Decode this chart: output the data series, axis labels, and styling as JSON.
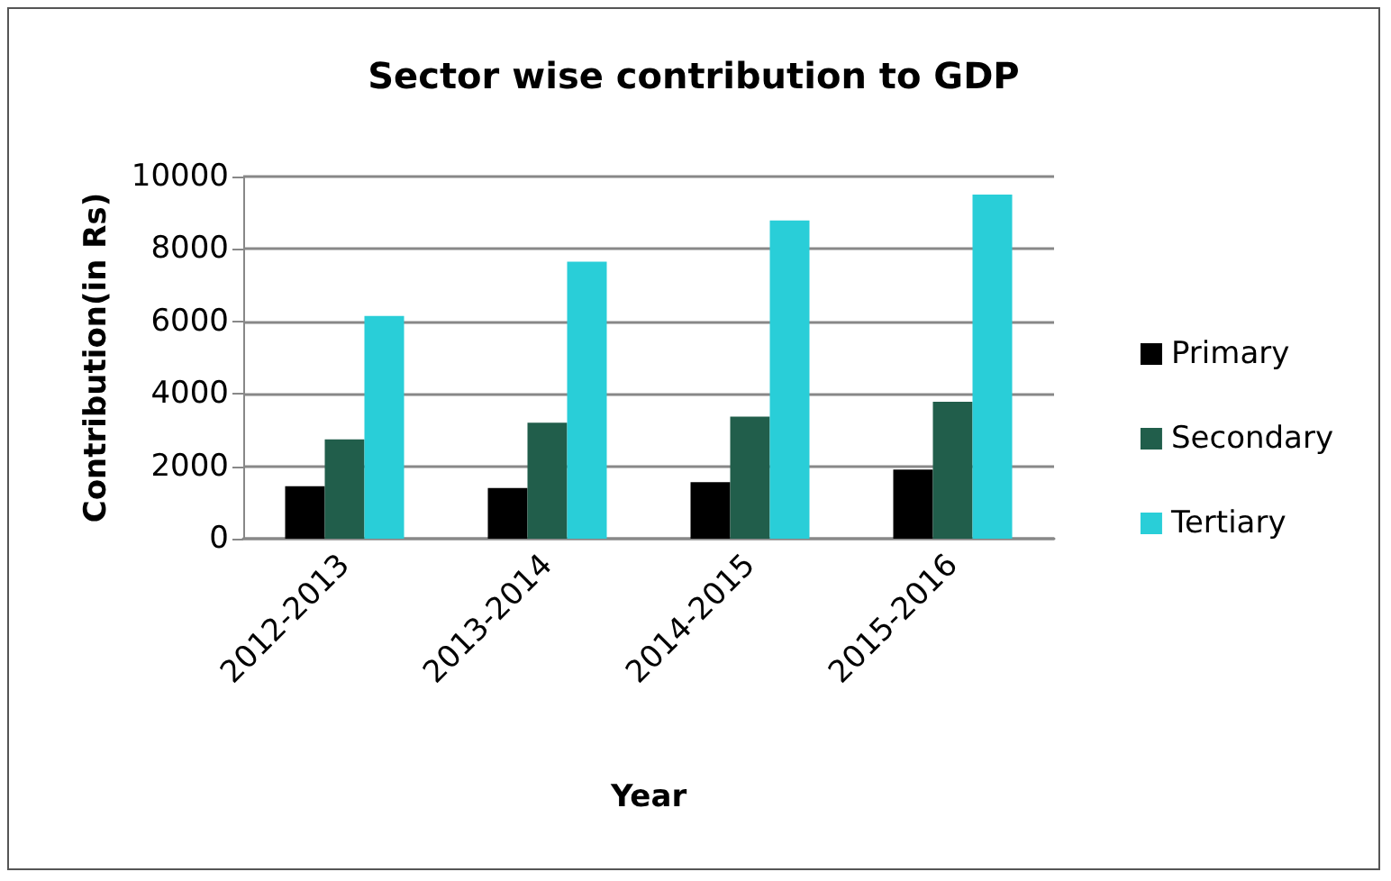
{
  "chart_data": {
    "type": "bar",
    "title": "Sector wise contribution to GDP",
    "xlabel": "Year",
    "ylabel": "Contribution(in Rs)",
    "categories": [
      "2012-2013",
      "2013-2014",
      "2014-2015",
      "2015-2016"
    ],
    "series": [
      {
        "name": "Primary",
        "color": "#000000",
        "values": [
          1450,
          1400,
          1560,
          1910
        ]
      },
      {
        "name": "Secondary",
        "color": "#215e4b",
        "values": [
          2740,
          3200,
          3370,
          3780
        ]
      },
      {
        "name": "Tertiary",
        "color": "#29ced8",
        "values": [
          6150,
          7650,
          8790,
          9500
        ]
      }
    ],
    "ylim": [
      0,
      10000
    ],
    "yticks": [
      0,
      2000,
      4000,
      6000,
      8000,
      10000
    ],
    "grid": "y",
    "legend": "right"
  }
}
